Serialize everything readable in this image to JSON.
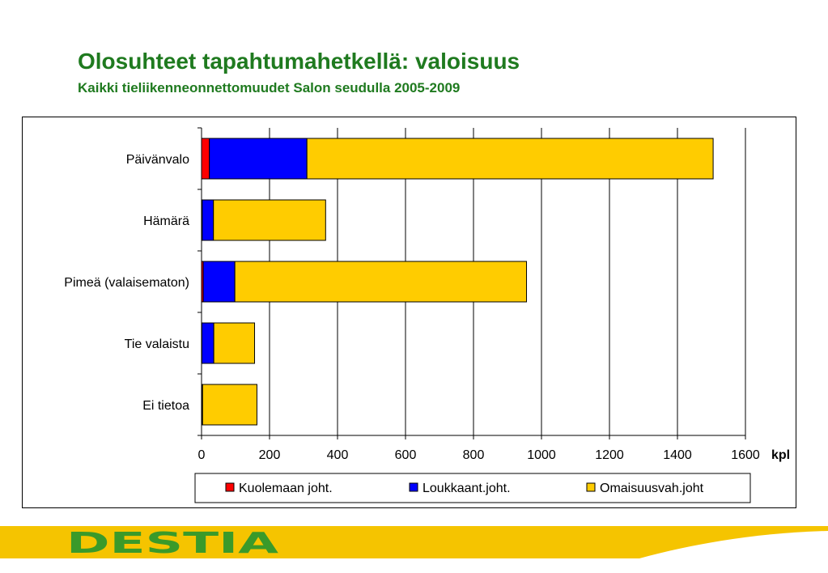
{
  "slide": {
    "title": "Olosuhteet tapahtumahetkellä: valoisuus",
    "subtitle": "Kaikki tieliikenneonnettomuudet Salon seudulla 2005-2009"
  },
  "logo": {
    "text": "DESTIA",
    "color": "#3a9a2a"
  },
  "colors": {
    "title": "#1f7a1f",
    "footer_band": "#f5c400"
  },
  "chart_data": {
    "type": "bar",
    "orientation": "horizontal",
    "stacked": true,
    "categories": [
      "Päivänvalo",
      "Hämärä",
      "Pimeä (valaisematon)",
      "Tie valaistu",
      "Ei tietoa"
    ],
    "series": [
      {
        "name": "Kuolemaan joht.",
        "color": "#ff0000",
        "values": [
          23,
          2,
          5,
          1,
          2
        ]
      },
      {
        "name": "Loukkaant.joht.",
        "color": "#0000ff",
        "values": [
          287,
          33,
          93,
          35,
          1
        ]
      },
      {
        "name": "Omaisuusvah.joht",
        "color": "#ffcc00",
        "values": [
          1195,
          330,
          858,
          120,
          160
        ]
      }
    ],
    "xlim": [
      0,
      1600
    ],
    "xticks": [
      0,
      200,
      400,
      600,
      800,
      1000,
      1200,
      1400,
      1600
    ],
    "xunit": "kpl",
    "grid": "vertical",
    "legend": "bottom"
  }
}
